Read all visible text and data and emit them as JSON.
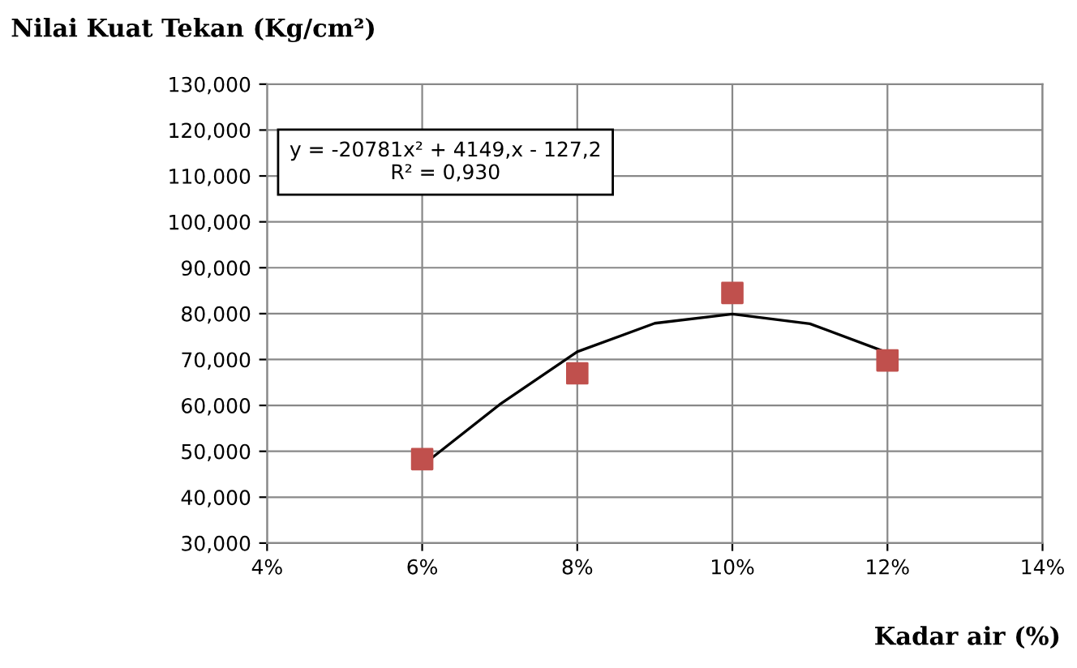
{
  "chart_data": {
    "type": "scatter",
    "title": "Nilai Kuat Tekan (Kg/cm²)",
    "xlabel": "Kadar air (%)",
    "annotations": [
      "y = -20781x² + 4149,x - 127,2",
      "R² = 0,930"
    ],
    "series": [
      {
        "color": "#c0504d",
        "marker": "square",
        "x": [
          0.06,
          0.08,
          0.1,
          0.12
        ],
        "values": [
          48.3,
          67.0,
          84.5,
          69.8
        ]
      },
      {
        "type": "line",
        "color": "#000000",
        "marker": "none",
        "line_style": "solid",
        "x": [
          0.06,
          0.07,
          0.08,
          0.09,
          0.1,
          0.11,
          0.12
        ],
        "values": [
          46.9,
          60.2,
          71.7,
          77.9,
          79.9,
          77.8,
          71.5
        ]
      }
    ],
    "xlim": [
      0.04,
      0.14
    ],
    "xticks": [
      {
        "value": 0.04,
        "label": "4%"
      },
      {
        "value": 0.06,
        "label": "6%"
      },
      {
        "value": 0.08,
        "label": "8%"
      },
      {
        "value": 0.1,
        "label": "10%"
      },
      {
        "value": 0.12,
        "label": "12%"
      },
      {
        "value": 0.14,
        "label": "14%"
      }
    ],
    "ylim": [
      30,
      130
    ],
    "yticks": [
      {
        "value": 30,
        "label": "30,000"
      },
      {
        "value": 40,
        "label": "40,000"
      },
      {
        "value": 50,
        "label": "50,000"
      },
      {
        "value": 60,
        "label": "60,000"
      },
      {
        "value": 70,
        "label": "70,000"
      },
      {
        "value": 80,
        "label": "80,000"
      },
      {
        "value": 90,
        "label": "90,000"
      },
      {
        "value": 100,
        "label": "100,000"
      },
      {
        "value": 110,
        "label": "110,000"
      },
      {
        "value": 120,
        "label": "120,000"
      },
      {
        "value": 130,
        "label": "130,000"
      }
    ],
    "grid": true
  }
}
